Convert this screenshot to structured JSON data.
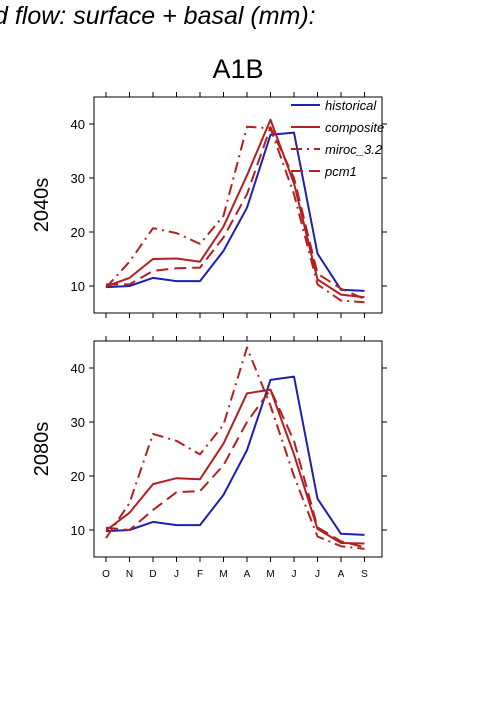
{
  "page_title": "d flow: surface + basal (mm):",
  "scenario": "A1B",
  "colors": {
    "historical": "#1f1fb4",
    "composite": "#b41f1f",
    "miroc_3.2": "#b41f1f",
    "pcm1": "#b41f1f"
  },
  "chart_data": [
    {
      "type": "line",
      "title": "",
      "ylabel": "2040s",
      "xlabel": "",
      "categories": [
        "O",
        "N",
        "D",
        "J",
        "F",
        "M",
        "A",
        "M",
        "J",
        "J",
        "A",
        "S"
      ],
      "yticks": [
        10,
        20,
        30,
        40
      ],
      "ylim": [
        5,
        45
      ],
      "legend": {
        "placement": "top-right"
      },
      "series": [
        {
          "name": "historical",
          "style": "solid",
          "color": "#1f1fb4",
          "values": [
            9.8,
            10.0,
            11.5,
            10.9,
            10.9,
            16.5,
            24.5,
            38.0,
            38.4,
            16.0,
            9.3,
            9.1
          ]
        },
        {
          "name": "composite",
          "style": "solid",
          "color": "#b41f1f",
          "values": [
            9.9,
            11.5,
            15.0,
            15.1,
            14.5,
            21.0,
            30.5,
            40.8,
            29.0,
            11.2,
            8.4,
            7.9
          ]
        },
        {
          "name": "miroc_3.2",
          "style": "dashdot",
          "color": "#b41f1f",
          "values": [
            9.7,
            14.5,
            20.7,
            19.8,
            17.8,
            23.0,
            39.5,
            39.2,
            27.0,
            10.3,
            7.3,
            7.0
          ]
        },
        {
          "name": "pcm1",
          "style": "dashed",
          "color": "#b41f1f",
          "values": [
            10.3,
            10.3,
            12.8,
            13.3,
            13.4,
            19.0,
            27.0,
            39.4,
            30.0,
            12.3,
            9.5,
            7.6
          ]
        }
      ]
    },
    {
      "type": "line",
      "title": "",
      "ylabel": "2080s",
      "xlabel": "",
      "categories": [
        "O",
        "N",
        "D",
        "J",
        "F",
        "M",
        "A",
        "M",
        "J",
        "J",
        "A",
        "S"
      ],
      "yticks": [
        10,
        20,
        30,
        40
      ],
      "ylim": [
        5,
        45
      ],
      "series": [
        {
          "name": "historical",
          "style": "solid",
          "color": "#1f1fb4",
          "values": [
            9.8,
            10.0,
            11.5,
            10.9,
            10.9,
            16.5,
            24.8,
            37.8,
            38.4,
            15.8,
            9.3,
            9.1
          ]
        },
        {
          "name": "composite",
          "style": "solid",
          "color": "#b41f1f",
          "values": [
            9.9,
            13.2,
            18.5,
            19.6,
            19.4,
            26.0,
            35.3,
            36.0,
            24.0,
            10.2,
            7.6,
            7.5
          ]
        },
        {
          "name": "miroc_3.2",
          "style": "dashdot",
          "color": "#b41f1f",
          "values": [
            8.5,
            15.0,
            27.8,
            26.5,
            24.0,
            29.5,
            43.8,
            33.0,
            20.0,
            8.8,
            7.0,
            6.5
          ]
        },
        {
          "name": "pcm1",
          "style": "dashed",
          "color": "#b41f1f",
          "values": [
            10.4,
            10.0,
            13.7,
            17.0,
            17.2,
            22.0,
            30.0,
            36.0,
            26.5,
            10.5,
            7.9,
            6.8
          ]
        }
      ]
    }
  ]
}
